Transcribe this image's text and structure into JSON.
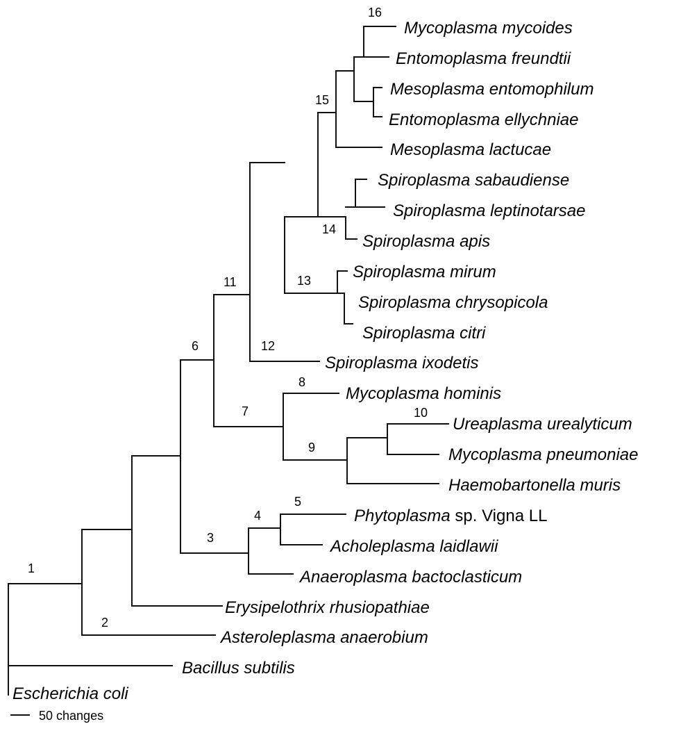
{
  "taxa": [
    "Mycoplasma mycoides",
    "Entomoplasma freundtii",
    "Mesoplasma entomophilum",
    "Entomoplasma ellychniae",
    "Mesoplasma lactucae",
    "Spiroplasma sabaudiense",
    "Spiroplasma leptinotarsae",
    "Spiroplasma apis",
    "Spiroplasma mirum",
    "Spiroplasma chrysopicola",
    "Spiroplasma citri",
    "Spiroplasma ixodetis",
    "Mycoplasma hominis",
    "Ureaplasma urealyticum",
    "Mycoplasma pneumoniae",
    "Haemobartonella muris",
    {
      "italic": "Phytoplasma",
      "roman": " sp. Vigna LL"
    },
    "Acholeplasma laidlawii",
    "Anaeroplasma bactoclasticum",
    "Erysipelothrix rhusiopathiae",
    "Asteroleplasma anaerobium",
    "Bacillus subtilis",
    "Escherichia coli"
  ],
  "node_labels": [
    "1",
    "2",
    "3",
    "4",
    "5",
    "6",
    "7",
    "8",
    "9",
    "10",
    "11",
    "12",
    "13",
    "14",
    "15",
    "16"
  ],
  "scale_bar": {
    "label": "50 changes"
  }
}
